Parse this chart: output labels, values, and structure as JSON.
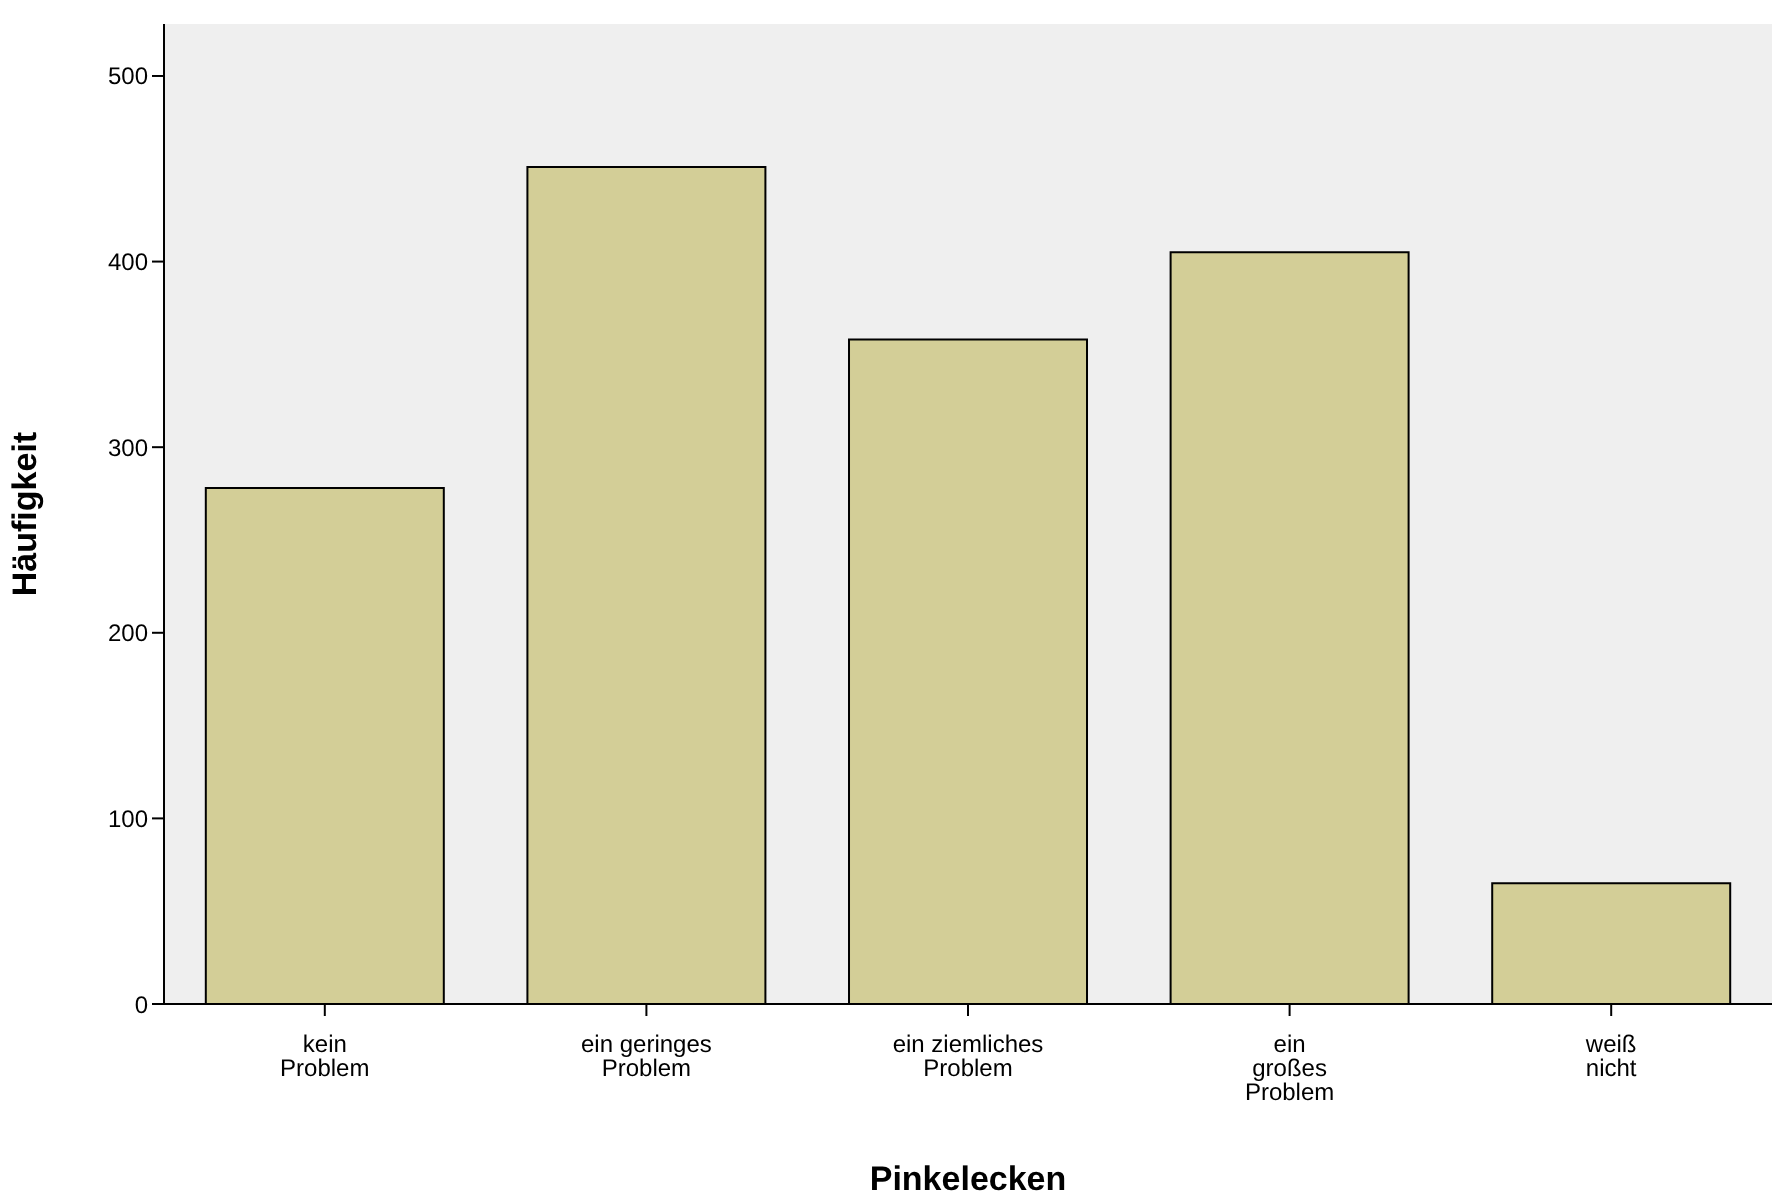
{
  "chart_data": {
    "type": "bar",
    "xlabel": "Pinkelecken",
    "ylabel": "Häufigkeit",
    "categories": [
      "kein\nProblem",
      "ein geringes\nProblem",
      "ein ziemliches\nProblem",
      "ein\ngroßes\nProblem",
      "weiß\nnicht"
    ],
    "values": [
      278,
      451,
      358,
      405,
      65
    ],
    "color": "#d3ce97",
    "ylim": [
      0,
      528
    ],
    "yticks": [
      0,
      100,
      200,
      300,
      400,
      500
    ],
    "grid": false
  }
}
